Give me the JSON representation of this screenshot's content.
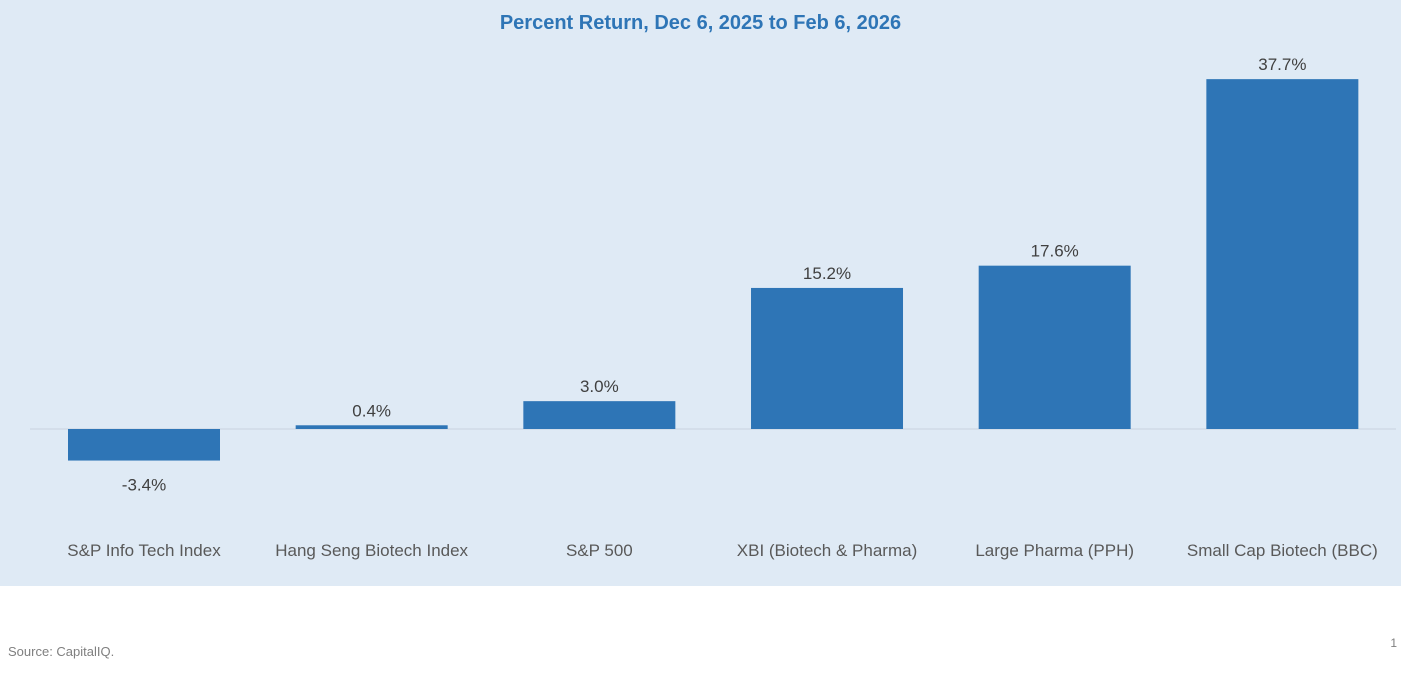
{
  "chart_data": {
    "type": "bar",
    "title": "Percent Return, Dec 6, 2025 to Feb 6, 2026",
    "categories": [
      "S&P Info Tech Index",
      "Hang Seng Biotech Index",
      "S&P 500",
      "XBI (Biotech & Pharma)",
      "Large Pharma (PPH)",
      "Small Cap Biotech (BBC)"
    ],
    "values": [
      -3.4,
      0.4,
      3.0,
      15.2,
      17.6,
      37.7
    ],
    "data_labels": [
      "-3.4%",
      "0.4%",
      "3.0%",
      "15.2%",
      "17.6%",
      "37.7%"
    ],
    "bar_color": "#2e75b6",
    "grid": false,
    "legend": "none"
  },
  "footer": {
    "source": "Source: CapitalIQ.",
    "page_number": "1"
  }
}
